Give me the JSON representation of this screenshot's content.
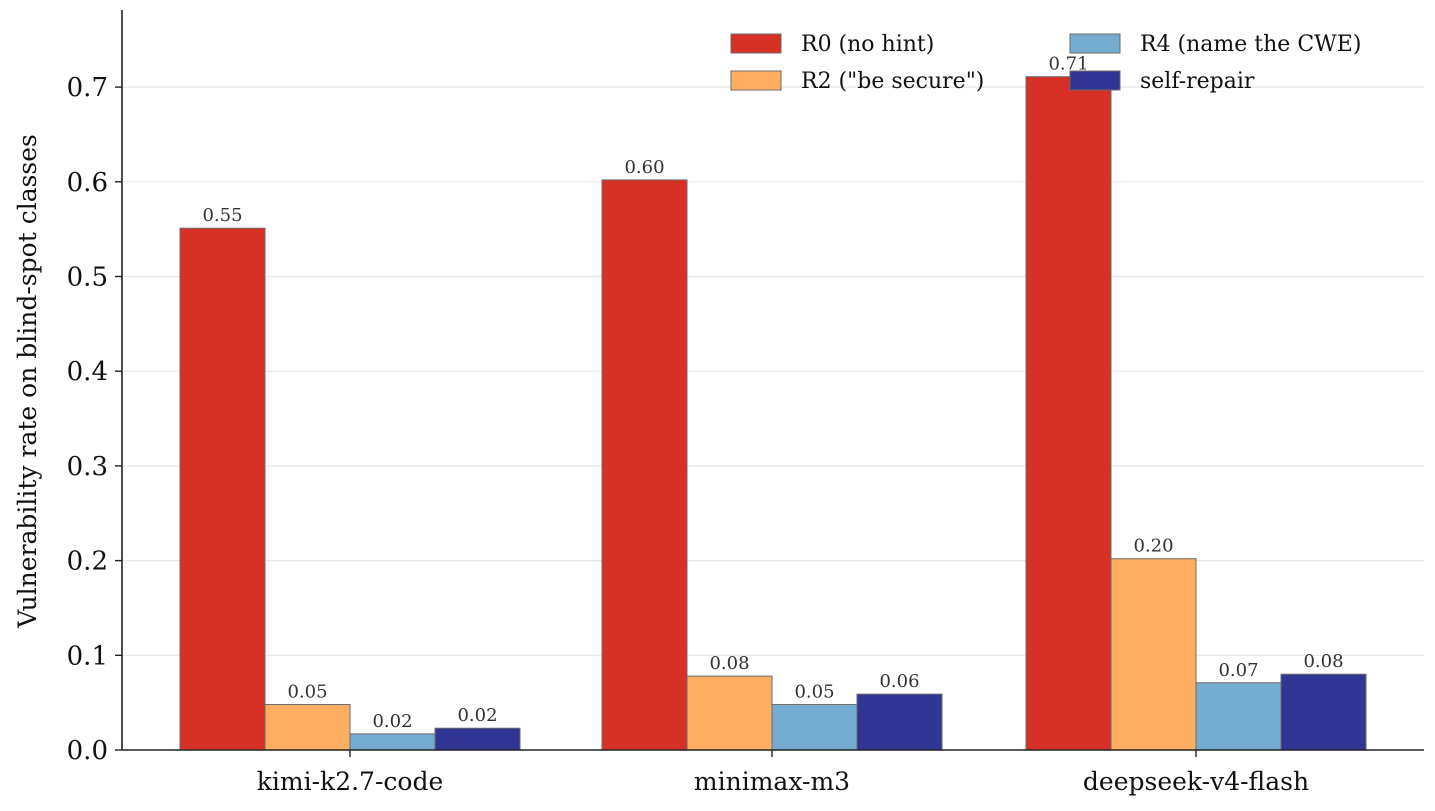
{
  "chart_data": {
    "type": "bar",
    "title": "",
    "xlabel": "",
    "ylabel": "Vulnerability rate on blind-spot classes",
    "ylim": [
      0,
      0.78
    ],
    "yticks": [
      "0.0",
      "0.1",
      "0.2",
      "0.3",
      "0.4",
      "0.5",
      "0.6",
      "0.7"
    ],
    "categories": [
      "kimi-k2.7-code",
      "minimax-m3",
      "deepseek-v4-flash"
    ],
    "grid": "horizontal",
    "legend_position": "top-right",
    "series": [
      {
        "name": "R0  (no hint)",
        "color": "#d73027",
        "values": [
          0.551,
          0.602,
          0.711
        ],
        "labels": [
          "0.55",
          "0.60",
          "0.71"
        ]
      },
      {
        "name": "R2  (\"be secure\")",
        "color": "#fdae61",
        "values": [
          0.048,
          0.078,
          0.202
        ],
        "labels": [
          "0.05",
          "0.08",
          "0.20"
        ]
      },
      {
        "name": "R4  (name the CWE)",
        "color": "#74add1",
        "values": [
          0.017,
          0.048,
          0.071
        ],
        "labels": [
          "0.02",
          "0.05",
          "0.07"
        ]
      },
      {
        "name": "self-repair",
        "color": "#313695",
        "values": [
          0.023,
          0.059,
          0.08
        ],
        "labels": [
          "0.02",
          "0.06",
          "0.08"
        ]
      }
    ]
  }
}
